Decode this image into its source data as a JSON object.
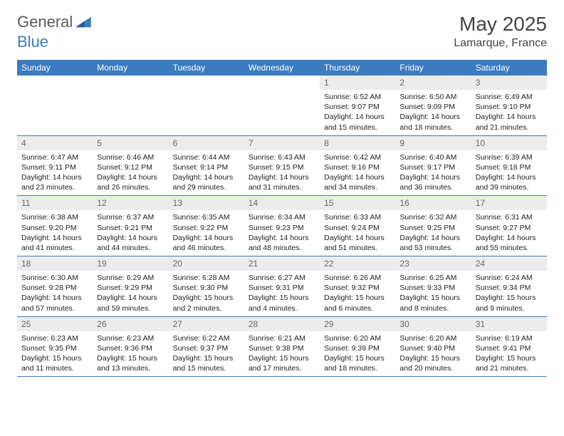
{
  "logo": {
    "text1": "General",
    "text2": "Blue"
  },
  "title": "May 2025",
  "subtitle": "Lamarque, France",
  "colors": {
    "header_bg": "#3b7bbf",
    "daynum_bg": "#ececec",
    "text": "#222222"
  },
  "columns": [
    "Sunday",
    "Monday",
    "Tuesday",
    "Wednesday",
    "Thursday",
    "Friday",
    "Saturday"
  ],
  "first_weekday_index": 4,
  "days": [
    {
      "n": "1",
      "sr": "6:52 AM",
      "ss": "9:07 PM",
      "dl": "14 hours and 15 minutes."
    },
    {
      "n": "2",
      "sr": "6:50 AM",
      "ss": "9:09 PM",
      "dl": "14 hours and 18 minutes."
    },
    {
      "n": "3",
      "sr": "6:49 AM",
      "ss": "9:10 PM",
      "dl": "14 hours and 21 minutes."
    },
    {
      "n": "4",
      "sr": "6:47 AM",
      "ss": "9:11 PM",
      "dl": "14 hours and 23 minutes."
    },
    {
      "n": "5",
      "sr": "6:46 AM",
      "ss": "9:12 PM",
      "dl": "14 hours and 26 minutes."
    },
    {
      "n": "6",
      "sr": "6:44 AM",
      "ss": "9:14 PM",
      "dl": "14 hours and 29 minutes."
    },
    {
      "n": "7",
      "sr": "6:43 AM",
      "ss": "9:15 PM",
      "dl": "14 hours and 31 minutes."
    },
    {
      "n": "8",
      "sr": "6:42 AM",
      "ss": "9:16 PM",
      "dl": "14 hours and 34 minutes."
    },
    {
      "n": "9",
      "sr": "6:40 AM",
      "ss": "9:17 PM",
      "dl": "14 hours and 36 minutes."
    },
    {
      "n": "10",
      "sr": "6:39 AM",
      "ss": "9:18 PM",
      "dl": "14 hours and 39 minutes."
    },
    {
      "n": "11",
      "sr": "6:38 AM",
      "ss": "9:20 PM",
      "dl": "14 hours and 41 minutes."
    },
    {
      "n": "12",
      "sr": "6:37 AM",
      "ss": "9:21 PM",
      "dl": "14 hours and 44 minutes."
    },
    {
      "n": "13",
      "sr": "6:35 AM",
      "ss": "9:22 PM",
      "dl": "14 hours and 46 minutes."
    },
    {
      "n": "14",
      "sr": "6:34 AM",
      "ss": "9:23 PM",
      "dl": "14 hours and 48 minutes."
    },
    {
      "n": "15",
      "sr": "6:33 AM",
      "ss": "9:24 PM",
      "dl": "14 hours and 51 minutes."
    },
    {
      "n": "16",
      "sr": "6:32 AM",
      "ss": "9:25 PM",
      "dl": "14 hours and 53 minutes."
    },
    {
      "n": "17",
      "sr": "6:31 AM",
      "ss": "9:27 PM",
      "dl": "14 hours and 55 minutes."
    },
    {
      "n": "18",
      "sr": "6:30 AM",
      "ss": "9:28 PM",
      "dl": "14 hours and 57 minutes."
    },
    {
      "n": "19",
      "sr": "6:29 AM",
      "ss": "9:29 PM",
      "dl": "14 hours and 59 minutes."
    },
    {
      "n": "20",
      "sr": "6:28 AM",
      "ss": "9:30 PM",
      "dl": "15 hours and 2 minutes."
    },
    {
      "n": "21",
      "sr": "6:27 AM",
      "ss": "9:31 PM",
      "dl": "15 hours and 4 minutes."
    },
    {
      "n": "22",
      "sr": "6:26 AM",
      "ss": "9:32 PM",
      "dl": "15 hours and 6 minutes."
    },
    {
      "n": "23",
      "sr": "6:25 AM",
      "ss": "9:33 PM",
      "dl": "15 hours and 8 minutes."
    },
    {
      "n": "24",
      "sr": "6:24 AM",
      "ss": "9:34 PM",
      "dl": "15 hours and 9 minutes."
    },
    {
      "n": "25",
      "sr": "6:23 AM",
      "ss": "9:35 PM",
      "dl": "15 hours and 11 minutes."
    },
    {
      "n": "26",
      "sr": "6:23 AM",
      "ss": "9:36 PM",
      "dl": "15 hours and 13 minutes."
    },
    {
      "n": "27",
      "sr": "6:22 AM",
      "ss": "9:37 PM",
      "dl": "15 hours and 15 minutes."
    },
    {
      "n": "28",
      "sr": "6:21 AM",
      "ss": "9:38 PM",
      "dl": "15 hours and 17 minutes."
    },
    {
      "n": "29",
      "sr": "6:20 AM",
      "ss": "9:39 PM",
      "dl": "15 hours and 18 minutes."
    },
    {
      "n": "30",
      "sr": "6:20 AM",
      "ss": "9:40 PM",
      "dl": "15 hours and 20 minutes."
    },
    {
      "n": "31",
      "sr": "6:19 AM",
      "ss": "9:41 PM",
      "dl": "15 hours and 21 minutes."
    }
  ],
  "labels": {
    "sunrise": "Sunrise:",
    "sunset": "Sunset:",
    "daylight": "Daylight:"
  }
}
